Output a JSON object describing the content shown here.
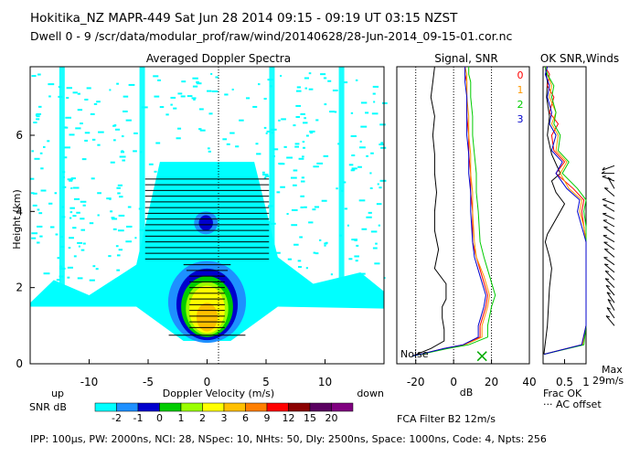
{
  "header": {
    "line1": "Hokitika_NZ   MAPR-449   Sat Jun 28 2014 09:15 - 09:19 UT 03:15 NZST",
    "line2": "Dwell   0 - 9   /scr/data/modular_prof/raw/wind/20140628/28-Jun-2014_09-15-01.cor.nc"
  },
  "footer": "IPP: 100µs,  PW: 2000ns,  NCI: 28,  NSpec: 10,  NHts: 50,  Dly: 2500ns,  Space: 1000ns,  Code: 4,  Npts: 256",
  "chart_data": [
    {
      "type": "heatmap",
      "title": "Averaged Doppler Spectra",
      "xlabel": "Doppler Velocity (m/s)",
      "ylabel": "Height (km)",
      "xlim": [
        -15,
        15
      ],
      "ylim": [
        0,
        7.8
      ],
      "xticks": [
        -10,
        -5,
        0,
        5,
        10
      ],
      "yticks": [
        0,
        2,
        4,
        6
      ],
      "left_label": "up",
      "right_label": "down",
      "colorbar": {
        "label": "SNR dB",
        "ticks": [
          "-2",
          "-1",
          "0",
          "1",
          "2",
          "3",
          "6",
          "9",
          "12",
          "15",
          "20"
        ],
        "colors": [
          "#00ffff",
          "#1e90ff",
          "#0000cd",
          "#00cc00",
          "#9aff00",
          "#ffff00",
          "#ffc000",
          "#ff7f00",
          "#ff0000",
          "#8b0000",
          "#5a0060",
          "#800080"
        ]
      },
      "error_bars": [
        {
          "height": 0.75,
          "center": 0,
          "width": 6.5
        },
        {
          "height": 0.95,
          "center": 0,
          "width": 3
        },
        {
          "height": 1.1,
          "center": 0,
          "width": 3
        },
        {
          "height": 1.25,
          "center": 0,
          "width": 3
        },
        {
          "height": 1.4,
          "center": 0,
          "width": 3
        },
        {
          "height": 1.55,
          "center": 0,
          "width": 3
        },
        {
          "height": 1.7,
          "center": 0,
          "width": 3
        },
        {
          "height": 1.85,
          "center": 0,
          "width": 3
        },
        {
          "height": 2.0,
          "center": 0,
          "width": 3
        },
        {
          "height": 2.15,
          "center": 0,
          "width": 3
        },
        {
          "height": 2.3,
          "center": 0,
          "width": 3
        },
        {
          "height": 2.45,
          "center": 0,
          "width": 3.5
        },
        {
          "height": 2.6,
          "center": 0,
          "width": 4
        },
        {
          "height": 2.75,
          "center": 0,
          "width": 10.5
        },
        {
          "height": 2.9,
          "center": 0,
          "width": 10.5
        },
        {
          "height": 3.05,
          "center": 0,
          "width": 10.5
        },
        {
          "height": 3.2,
          "center": 0,
          "width": 10.5
        },
        {
          "height": 3.35,
          "center": 0,
          "width": 10.5
        },
        {
          "height": 3.5,
          "center": 0,
          "width": 10.5
        },
        {
          "height": 3.65,
          "center": 0,
          "width": 10.5
        },
        {
          "height": 3.8,
          "center": 0,
          "width": 10.5
        },
        {
          "height": 3.95,
          "center": 0,
          "width": 10.5
        },
        {
          "height": 4.1,
          "center": 0,
          "width": 10.5
        },
        {
          "height": 4.25,
          "center": 0,
          "width": 10.5
        },
        {
          "height": 4.4,
          "center": 0,
          "width": 10.5
        },
        {
          "height": 4.55,
          "center": 0,
          "width": 10.5
        },
        {
          "height": 4.7,
          "center": 0,
          "width": 10.5
        },
        {
          "height": 4.85,
          "center": 0,
          "width": 10.5
        }
      ]
    },
    {
      "type": "line",
      "title": "Signal, SNR",
      "xlabel": "dB",
      "xlim": [
        -30,
        40
      ],
      "ylim": [
        0,
        7.8
      ],
      "xticks": [
        -20,
        0,
        20,
        40
      ],
      "dotted_x": [
        -20,
        0,
        20
      ],
      "noise_label": "Noise",
      "noise_marker": {
        "x": 15,
        "height": 0.2
      },
      "series": [
        {
          "name": "Signal",
          "color": "#000000",
          "x": [
            -22,
            -12,
            -5,
            -5,
            -6,
            -6,
            -4,
            -4,
            -10,
            -8,
            -10,
            -10,
            -9,
            -10,
            -10,
            -11,
            -10,
            -12,
            -11,
            -10
          ],
          "y": [
            0.2,
            0.4,
            0.6,
            0.9,
            1.2,
            1.5,
            1.7,
            2.1,
            2.5,
            3.0,
            3.5,
            4.0,
            4.5,
            5.0,
            5.5,
            6.0,
            6.5,
            7.0,
            7.4,
            7.8
          ]
        },
        {
          "name": "0",
          "color": "#ff0000",
          "x": [
            -22,
            -5,
            5,
            14,
            14,
            17,
            18,
            15,
            12,
            10,
            10,
            9,
            9,
            8,
            8,
            7,
            7,
            7,
            6,
            6
          ],
          "y": [
            0.2,
            0.4,
            0.5,
            0.7,
            1.0,
            1.5,
            1.8,
            2.3,
            2.8,
            3.2,
            4.0,
            4.5,
            5.0,
            5.5,
            6.0,
            6.5,
            7.0,
            7.4,
            7.6,
            7.8
          ]
        },
        {
          "name": "1",
          "color": "#ff9900",
          "x": [
            -22,
            -4,
            6,
            15,
            15,
            18,
            19,
            16,
            12,
            11,
            10,
            10,
            9,
            9,
            8,
            8,
            7,
            7,
            7,
            6
          ],
          "y": [
            0.2,
            0.4,
            0.5,
            0.7,
            1.0,
            1.5,
            1.8,
            2.3,
            2.8,
            3.2,
            4.0,
            4.5,
            5.0,
            5.5,
            6.0,
            6.5,
            7.0,
            7.4,
            7.6,
            7.8
          ]
        },
        {
          "name": "2",
          "color": "#00cc00",
          "x": [
            -22,
            -3,
            8,
            18,
            18,
            20,
            22,
            19,
            16,
            14,
            13,
            12,
            12,
            11,
            10,
            10,
            9,
            9,
            8,
            8
          ],
          "y": [
            0.2,
            0.4,
            0.5,
            0.7,
            1.0,
            1.5,
            1.8,
            2.3,
            2.8,
            3.2,
            4.0,
            4.5,
            5.0,
            5.5,
            6.0,
            6.5,
            7.0,
            7.4,
            7.6,
            7.8
          ]
        },
        {
          "name": "3",
          "color": "#0000cc",
          "x": [
            -22,
            -5,
            5,
            13,
            13,
            16,
            17,
            14,
            11,
            10,
            9,
            9,
            8,
            8,
            7,
            7,
            7,
            6,
            6,
            6
          ],
          "y": [
            0.2,
            0.4,
            0.5,
            0.7,
            1.0,
            1.5,
            1.8,
            2.3,
            2.8,
            3.2,
            4.0,
            4.5,
            5.0,
            5.5,
            6.0,
            6.5,
            7.0,
            7.4,
            7.6,
            7.8
          ]
        }
      ]
    },
    {
      "type": "line",
      "title": "OK SNR,Winds",
      "xlabel": "Frac OK",
      "note": "AC offset",
      "xlim": [
        0,
        1
      ],
      "ylim": [
        0,
        7.8
      ],
      "xticks": [
        "0.5",
        "1"
      ],
      "wind_scale": [
        "Max",
        "29m/s"
      ],
      "series": [
        {
          "name": "Frac OK",
          "color": "#000000",
          "x": [
            0.02,
            0.1,
            0.15,
            0.2,
            0.15,
            0.1,
            0.05,
            0.1,
            0.2,
            0.35,
            0.5,
            0.3,
            0.2,
            0.4,
            0.2,
            0.1,
            0.15,
            0.08,
            0.1,
            0.05
          ],
          "y": [
            0.25,
            1.0,
            2.0,
            2.5,
            2.8,
            3.0,
            3.2,
            3.4,
            3.6,
            3.9,
            4.2,
            4.5,
            4.8,
            5.0,
            5.5,
            6.0,
            6.5,
            7.0,
            7.4,
            7.8
          ]
        },
        {
          "name": "0",
          "color": "#ff0000",
          "x": [
            0.02,
            0.9,
            1.0,
            1.0,
            1.0,
            1.0,
            0.95,
            0.9,
            0.95,
            0.7,
            0.3,
            0.5,
            0.25,
            0.2,
            0.35,
            0.15,
            0.25,
            0.1,
            0.15,
            0.05
          ],
          "y": [
            0.25,
            0.5,
            1.0,
            2.0,
            2.8,
            3.2,
            3.6,
            4.0,
            4.3,
            4.6,
            5.0,
            5.3,
            5.6,
            6.0,
            6.3,
            6.6,
            7.0,
            7.3,
            7.6,
            7.8
          ]
        },
        {
          "name": "1",
          "color": "#ff9900",
          "x": [
            0.02,
            0.92,
            1.0,
            1.0,
            1.0,
            1.0,
            0.95,
            0.85,
            0.9,
            0.6,
            0.4,
            0.55,
            0.3,
            0.35,
            0.2,
            0.3,
            0.15,
            0.2,
            0.1,
            0.05
          ],
          "y": [
            0.25,
            0.5,
            1.0,
            2.0,
            2.8,
            3.2,
            3.6,
            4.0,
            4.3,
            4.6,
            5.0,
            5.3,
            5.6,
            6.0,
            6.3,
            6.6,
            7.0,
            7.3,
            7.6,
            7.8
          ]
        },
        {
          "name": "2",
          "color": "#00cc00",
          "x": [
            0.02,
            0.95,
            1.0,
            1.0,
            1.0,
            1.0,
            1.0,
            0.95,
            1.0,
            0.8,
            0.45,
            0.6,
            0.35,
            0.4,
            0.25,
            0.3,
            0.2,
            0.25,
            0.1,
            0.05
          ],
          "y": [
            0.25,
            0.5,
            1.0,
            2.0,
            2.8,
            3.2,
            3.6,
            4.0,
            4.3,
            4.6,
            5.0,
            5.3,
            5.6,
            6.0,
            6.3,
            6.6,
            7.0,
            7.3,
            7.6,
            7.8
          ]
        },
        {
          "name": "3",
          "color": "#0000cc",
          "x": [
            0.02,
            0.9,
            1.0,
            1.0,
            1.0,
            1.0,
            0.9,
            0.8,
            0.85,
            0.55,
            0.3,
            0.45,
            0.2,
            0.3,
            0.15,
            0.2,
            0.1,
            0.15,
            0.05,
            0.1
          ],
          "y": [
            0.25,
            0.5,
            1.0,
            2.0,
            2.8,
            3.2,
            3.6,
            4.0,
            4.3,
            4.6,
            5.0,
            5.3,
            5.6,
            6.0,
            6.3,
            6.6,
            7.0,
            7.3,
            7.6,
            7.8
          ]
        }
      ],
      "winds": [
        {
          "height": 1.0,
          "angle_deg": 230
        },
        {
          "height": 1.2,
          "angle_deg": 235
        },
        {
          "height": 1.4,
          "angle_deg": 240
        },
        {
          "height": 1.6,
          "angle_deg": 235
        },
        {
          "height": 1.8,
          "angle_deg": 230
        },
        {
          "height": 2.0,
          "angle_deg": 225
        },
        {
          "height": 2.2,
          "angle_deg": 225
        },
        {
          "height": 2.4,
          "angle_deg": 220
        },
        {
          "height": 2.6,
          "angle_deg": 215
        },
        {
          "height": 2.8,
          "angle_deg": 220
        },
        {
          "height": 3.0,
          "angle_deg": 215
        },
        {
          "height": 3.2,
          "angle_deg": 210
        },
        {
          "height": 3.4,
          "angle_deg": 215
        },
        {
          "height": 3.6,
          "angle_deg": 210
        },
        {
          "height": 3.8,
          "angle_deg": 205
        },
        {
          "height": 4.0,
          "angle_deg": 210
        },
        {
          "height": 4.2,
          "angle_deg": 200
        },
        {
          "height": 4.4,
          "angle_deg": 220
        },
        {
          "height": 4.6,
          "angle_deg": 240
        },
        {
          "height": 4.8,
          "angle_deg": 200
        },
        {
          "height": 5.0,
          "angle_deg": 180
        },
        {
          "height": 5.2,
          "angle_deg": 160
        }
      ]
    }
  ]
}
